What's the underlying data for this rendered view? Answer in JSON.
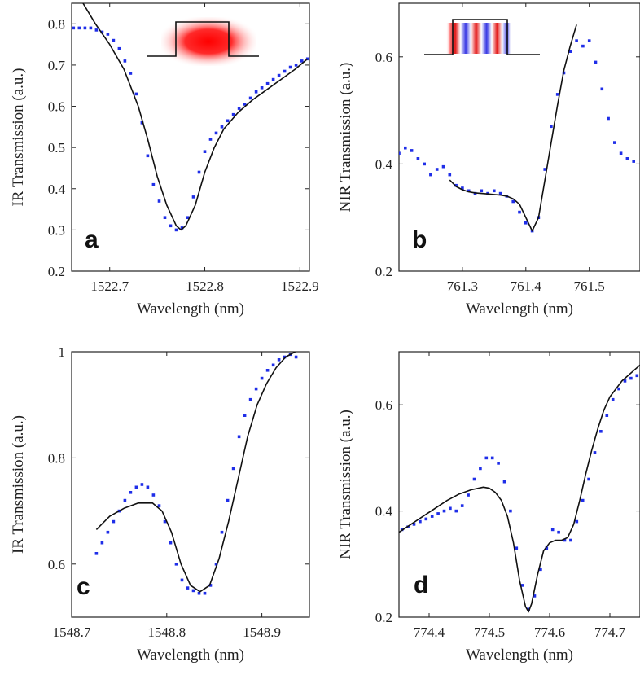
{
  "chart_data": [
    {
      "type": "scatter",
      "panel_letter": "a",
      "xlabel": "Wavelength (nm)",
      "ylabel": "IR Transmission (a.u.)",
      "xlim": [
        1522.66,
        1522.91
      ],
      "ylim": [
        0.2,
        0.85
      ],
      "xticks": [
        1522.7,
        1522.8,
        1522.9
      ],
      "xtick_labels": [
        "1522.7",
        "1522.8",
        "1522.9"
      ],
      "yticks": [
        0.2,
        0.3,
        0.4,
        0.5,
        0.6,
        0.7,
        0.8
      ],
      "ytick_labels": [
        "0.2",
        "0.3",
        "0.4",
        "0.5",
        "0.6",
        "0.7",
        "0.8"
      ],
      "inset": "red-mode",
      "series": [
        {
          "kind": "points",
          "color": "#1f2ee8",
          "x": [
            1522.662,
            1522.668,
            1522.674,
            1522.68,
            1522.686,
            1522.692,
            1522.698,
            1522.704,
            1522.71,
            1522.716,
            1522.722,
            1522.728,
            1522.734,
            1522.74,
            1522.746,
            1522.752,
            1522.758,
            1522.764,
            1522.77,
            1522.776,
            1522.782,
            1522.788,
            1522.794,
            1522.8,
            1522.806,
            1522.812,
            1522.818,
            1522.824,
            1522.83,
            1522.836,
            1522.842,
            1522.848,
            1522.854,
            1522.86,
            1522.866,
            1522.872,
            1522.878,
            1522.884,
            1522.89,
            1522.896,
            1522.902,
            1522.908
          ],
          "y": [
            0.79,
            0.79,
            0.79,
            0.79,
            0.785,
            0.78,
            0.775,
            0.76,
            0.74,
            0.71,
            0.68,
            0.63,
            0.56,
            0.48,
            0.41,
            0.37,
            0.33,
            0.31,
            0.3,
            0.305,
            0.33,
            0.38,
            0.44,
            0.49,
            0.52,
            0.535,
            0.55,
            0.565,
            0.58,
            0.595,
            0.605,
            0.62,
            0.635,
            0.645,
            0.655,
            0.665,
            0.675,
            0.685,
            0.695,
            0.7,
            0.71,
            0.715
          ]
        },
        {
          "kind": "fit",
          "color": "#111111",
          "x": [
            1522.672,
            1522.685,
            1522.7,
            1522.715,
            1522.73,
            1522.74,
            1522.75,
            1522.76,
            1522.77,
            1522.775,
            1522.78,
            1522.79,
            1522.8,
            1522.81,
            1522.82,
            1522.835,
            1522.85,
            1522.865,
            1522.88,
            1522.895,
            1522.908
          ],
          "y": [
            0.85,
            0.8,
            0.75,
            0.69,
            0.6,
            0.52,
            0.43,
            0.36,
            0.31,
            0.3,
            0.31,
            0.36,
            0.44,
            0.5,
            0.545,
            0.585,
            0.615,
            0.64,
            0.665,
            0.69,
            0.715
          ]
        }
      ]
    },
    {
      "type": "scatter",
      "panel_letter": "b",
      "xlabel": "Wavelength (nm)",
      "ylabel": "NIR Transmission (a.u.)",
      "xlim": [
        761.2,
        761.58
      ],
      "ylim": [
        0.2,
        0.7
      ],
      "xticks": [
        761.3,
        761.4,
        761.5
      ],
      "xtick_labels": [
        "761.3",
        "761.4",
        "761.5"
      ],
      "yticks": [
        0.2,
        0.4,
        0.6
      ],
      "ytick_labels": [
        "0.2",
        "0.4",
        "0.6"
      ],
      "inset": "red-blue-mode",
      "series": [
        {
          "kind": "points",
          "color": "#1f2ee8",
          "x": [
            761.2,
            761.21,
            761.22,
            761.23,
            761.24,
            761.25,
            761.26,
            761.27,
            761.28,
            761.29,
            761.3,
            761.31,
            761.32,
            761.33,
            761.34,
            761.35,
            761.36,
            761.37,
            761.38,
            761.39,
            761.4,
            761.41,
            761.42,
            761.43,
            761.44,
            761.45,
            761.46,
            761.47,
            761.48,
            761.49,
            761.5,
            761.51,
            761.52,
            761.53,
            761.54,
            761.55,
            761.56,
            761.57
          ],
          "y": [
            0.42,
            0.43,
            0.425,
            0.41,
            0.4,
            0.38,
            0.39,
            0.395,
            0.38,
            0.36,
            0.355,
            0.35,
            0.345,
            0.35,
            0.345,
            0.35,
            0.345,
            0.34,
            0.33,
            0.31,
            0.29,
            0.275,
            0.3,
            0.39,
            0.47,
            0.53,
            0.57,
            0.61,
            0.63,
            0.62,
            0.63,
            0.59,
            0.54,
            0.485,
            0.44,
            0.42,
            0.41,
            0.405
          ]
        },
        {
          "kind": "fit",
          "color": "#111111",
          "x": [
            761.28,
            761.29,
            761.3,
            761.31,
            761.32,
            761.33,
            761.34,
            761.35,
            761.36,
            761.37,
            761.38,
            761.39,
            761.4,
            761.41,
            761.42,
            761.43,
            761.44,
            761.45,
            761.46,
            761.47,
            761.48
          ],
          "y": [
            0.37,
            0.358,
            0.352,
            0.348,
            0.346,
            0.345,
            0.344,
            0.343,
            0.342,
            0.34,
            0.335,
            0.325,
            0.3,
            0.275,
            0.3,
            0.37,
            0.44,
            0.51,
            0.575,
            0.62,
            0.66
          ]
        }
      ]
    },
    {
      "type": "scatter",
      "panel_letter": "c",
      "xlabel": "Wavelength (nm)",
      "ylabel": "IR Transmission (a.u.)",
      "xlim": [
        1548.7,
        1548.95
      ],
      "ylim": [
        0.5,
        1.0
      ],
      "xticks": [
        1548.7,
        1548.8,
        1548.9
      ],
      "xtick_labels": [
        "1548.7",
        "1548.8",
        "1548.9"
      ],
      "yticks": [
        0.6,
        0.8,
        1.0
      ],
      "ytick_labels": [
        "0.6",
        "0.8",
        "1"
      ],
      "series": [
        {
          "kind": "points",
          "color": "#1f2ee8",
          "x": [
            1548.726,
            1548.732,
            1548.738,
            1548.744,
            1548.75,
            1548.756,
            1548.762,
            1548.768,
            1548.774,
            1548.78,
            1548.786,
            1548.792,
            1548.798,
            1548.804,
            1548.81,
            1548.816,
            1548.822,
            1548.828,
            1548.834,
            1548.84,
            1548.846,
            1548.852,
            1548.858,
            1548.864,
            1548.87,
            1548.876,
            1548.882,
            1548.888,
            1548.894,
            1548.9,
            1548.906,
            1548.912,
            1548.918,
            1548.924,
            1548.93,
            1548.936
          ],
          "y": [
            0.62,
            0.64,
            0.66,
            0.68,
            0.7,
            0.72,
            0.735,
            0.745,
            0.75,
            0.745,
            0.73,
            0.71,
            0.68,
            0.64,
            0.6,
            0.57,
            0.555,
            0.55,
            0.545,
            0.545,
            0.56,
            0.6,
            0.66,
            0.72,
            0.78,
            0.84,
            0.88,
            0.91,
            0.93,
            0.95,
            0.965,
            0.975,
            0.985,
            0.99,
            0.995,
            0.99
          ]
        },
        {
          "kind": "fit",
          "color": "#111111",
          "x": [
            1548.726,
            1548.74,
            1548.755,
            1548.77,
            1548.785,
            1548.795,
            1548.805,
            1548.815,
            1548.825,
            1548.835,
            1548.845,
            1548.855,
            1548.865,
            1548.875,
            1548.885,
            1548.895,
            1548.905,
            1548.915,
            1548.925,
            1548.935
          ],
          "y": [
            0.665,
            0.69,
            0.705,
            0.715,
            0.715,
            0.7,
            0.66,
            0.6,
            0.56,
            0.548,
            0.56,
            0.61,
            0.68,
            0.76,
            0.84,
            0.9,
            0.94,
            0.97,
            0.99,
            1.0
          ]
        }
      ]
    },
    {
      "type": "scatter",
      "panel_letter": "d",
      "xlabel": "Wavelength (nm)",
      "ylabel": "NIR Transmission (a.u.)",
      "xlim": [
        774.35,
        774.75
      ],
      "ylim": [
        0.2,
        0.7
      ],
      "xticks": [
        774.4,
        774.5,
        774.6,
        774.7
      ],
      "xtick_labels": [
        "774.4",
        "774.5",
        "774.6",
        "774.7"
      ],
      "yticks": [
        0.2,
        0.4,
        0.6
      ],
      "ytick_labels": [
        "0.2",
        "0.4",
        "0.6"
      ],
      "series": [
        {
          "kind": "points",
          "color": "#1f2ee8",
          "x": [
            774.355,
            774.365,
            774.375,
            774.385,
            774.395,
            774.405,
            774.415,
            774.425,
            774.435,
            774.445,
            774.455,
            774.465,
            774.475,
            774.485,
            774.495,
            774.505,
            774.515,
            774.525,
            774.535,
            774.545,
            774.555,
            774.565,
            774.575,
            774.585,
            774.595,
            774.605,
            774.615,
            774.625,
            774.635,
            774.645,
            774.655,
            774.665,
            774.675,
            774.685,
            774.695,
            774.705,
            774.715,
            774.725,
            774.735,
            774.745
          ],
          "y": [
            0.365,
            0.37,
            0.375,
            0.38,
            0.385,
            0.39,
            0.395,
            0.4,
            0.405,
            0.4,
            0.41,
            0.43,
            0.46,
            0.48,
            0.5,
            0.5,
            0.49,
            0.455,
            0.4,
            0.33,
            0.26,
            0.215,
            0.24,
            0.29,
            0.33,
            0.365,
            0.36,
            0.345,
            0.345,
            0.38,
            0.42,
            0.46,
            0.51,
            0.55,
            0.58,
            0.61,
            0.63,
            0.645,
            0.65,
            0.655
          ]
        },
        {
          "kind": "fit",
          "color": "#111111",
          "x": [
            774.35,
            774.37,
            774.39,
            774.41,
            774.43,
            774.45,
            774.47,
            774.49,
            774.5,
            774.51,
            774.52,
            774.53,
            774.54,
            774.55,
            774.56,
            774.565,
            774.57,
            774.58,
            774.59,
            774.6,
            774.61,
            774.62,
            774.63,
            774.64,
            774.65,
            774.66,
            774.67,
            774.68,
            774.69,
            774.7,
            774.72,
            774.74,
            774.75
          ],
          "y": [
            0.36,
            0.375,
            0.39,
            0.405,
            0.42,
            0.432,
            0.44,
            0.445,
            0.443,
            0.435,
            0.42,
            0.39,
            0.34,
            0.27,
            0.22,
            0.21,
            0.225,
            0.28,
            0.325,
            0.34,
            0.345,
            0.345,
            0.35,
            0.375,
            0.42,
            0.47,
            0.515,
            0.555,
            0.59,
            0.615,
            0.645,
            0.665,
            0.675
          ]
        }
      ]
    }
  ]
}
